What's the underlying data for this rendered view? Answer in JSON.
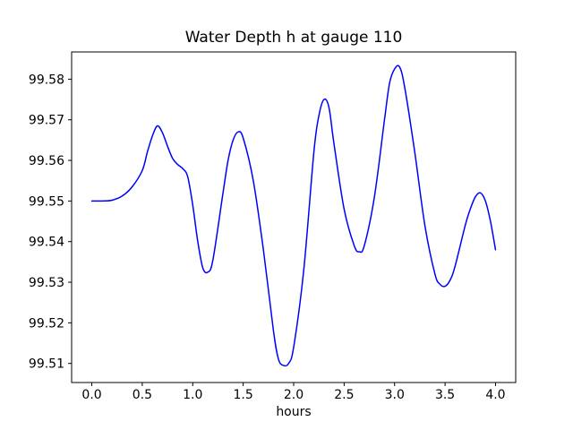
{
  "figure": {
    "background": "#ffffff"
  },
  "chart_data": {
    "type": "line",
    "title": "Water Depth h at gauge 110",
    "xlabel": "hours",
    "ylabel": "",
    "legend": null,
    "grid": false,
    "line_color": "#0000ff",
    "line_width": 1.5,
    "axes_color": "#000000",
    "xlim": [
      -0.2,
      4.2
    ],
    "ylim": [
      99.5053,
      99.5867
    ],
    "xticks": [
      0.0,
      0.5,
      1.0,
      1.5,
      2.0,
      2.5,
      3.0,
      3.5,
      4.0
    ],
    "xtick_labels": [
      "0.0",
      "0.5",
      "1.0",
      "1.5",
      "2.0",
      "2.5",
      "3.0",
      "3.5",
      "4.0"
    ],
    "yticks": [
      99.51,
      99.52,
      99.53,
      99.54,
      99.55,
      99.56,
      99.57,
      99.58
    ],
    "ytick_labels": [
      "99.51",
      "99.52",
      "99.53",
      "99.54",
      "99.55",
      "99.56",
      "99.57",
      "99.58"
    ],
    "x": [
      0.0,
      0.1,
      0.2,
      0.3,
      0.4,
      0.5,
      0.55,
      0.6,
      0.65,
      0.7,
      0.75,
      0.8,
      0.85,
      0.9,
      0.95,
      1.0,
      1.05,
      1.1,
      1.15,
      1.2,
      1.3,
      1.35,
      1.4,
      1.45,
      1.5,
      1.6,
      1.7,
      1.8,
      1.85,
      1.9,
      1.95,
      2.0,
      2.1,
      2.2,
      2.25,
      2.3,
      2.35,
      2.4,
      2.5,
      2.6,
      2.65,
      2.7,
      2.8,
      2.9,
      2.95,
      3.0,
      3.05,
      3.1,
      3.2,
      3.3,
      3.4,
      3.45,
      3.5,
      3.55,
      3.6,
      3.7,
      3.75,
      3.8,
      3.85,
      3.9,
      3.95,
      4.0
    ],
    "y": [
      99.55,
      99.55,
      99.5502,
      99.5512,
      99.5535,
      99.5575,
      99.562,
      99.566,
      99.5685,
      99.5668,
      99.5635,
      99.5605,
      99.559,
      99.558,
      99.556,
      99.549,
      99.54,
      99.5335,
      99.5325,
      99.5355,
      99.552,
      99.56,
      99.565,
      99.567,
      99.5655,
      99.555,
      99.538,
      99.518,
      99.511,
      99.5095,
      99.51,
      99.514,
      99.533,
      99.562,
      99.571,
      99.575,
      99.573,
      99.564,
      99.548,
      99.539,
      99.5375,
      99.539,
      99.551,
      99.57,
      99.579,
      99.5825,
      99.583,
      99.578,
      99.562,
      99.544,
      99.532,
      99.5295,
      99.529,
      99.5305,
      99.534,
      99.544,
      99.548,
      99.551,
      99.552,
      99.55,
      99.545,
      99.538
    ]
  }
}
